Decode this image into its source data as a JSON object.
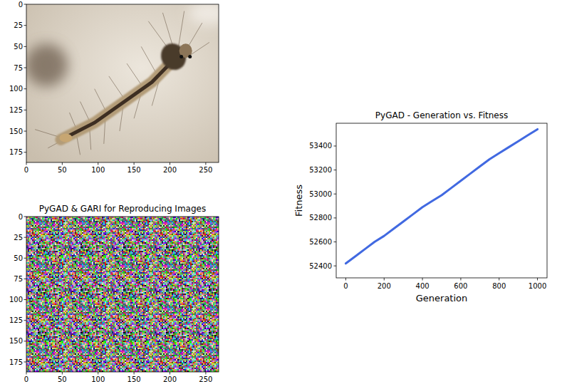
{
  "chart_data": [
    {
      "type": "image",
      "xlim": [
        0,
        268
      ],
      "ylim": [
        187,
        0
      ],
      "xticks": [
        0,
        50,
        100,
        150,
        200,
        250
      ],
      "yticks": [
        0,
        25,
        50,
        75,
        100,
        125,
        150,
        175
      ]
    },
    {
      "type": "image",
      "title": "PyGAD & GARI for Reproducing Images",
      "xlim": [
        0,
        268
      ],
      "ylim": [
        187,
        0
      ],
      "xticks": [
        0,
        50,
        100,
        150,
        200,
        250
      ],
      "yticks": [
        0,
        25,
        50,
        75,
        100,
        125,
        150,
        175
      ]
    },
    {
      "type": "line",
      "title": "PyGAD - Generation vs. Fitness",
      "x_label": "Generation",
      "y_label": "Fitness",
      "color": "#4169e1",
      "x": [
        0,
        50,
        100,
        150,
        200,
        250,
        300,
        350,
        400,
        450,
        500,
        550,
        600,
        650,
        700,
        750,
        800,
        850,
        900,
        950,
        1000
      ],
      "values": [
        52420,
        52480,
        52540,
        52600,
        52650,
        52710,
        52770,
        52830,
        52890,
        52940,
        52990,
        53050,
        53110,
        53170,
        53230,
        53290,
        53340,
        53390,
        53440,
        53490,
        53540
      ],
      "xlim": [
        -50,
        1050
      ],
      "ylim": [
        52300,
        53590
      ],
      "xticks": [
        0,
        200,
        400,
        600,
        800,
        1000
      ],
      "yticks": [
        52400,
        52600,
        52800,
        53000,
        53200,
        53400
      ]
    }
  ]
}
